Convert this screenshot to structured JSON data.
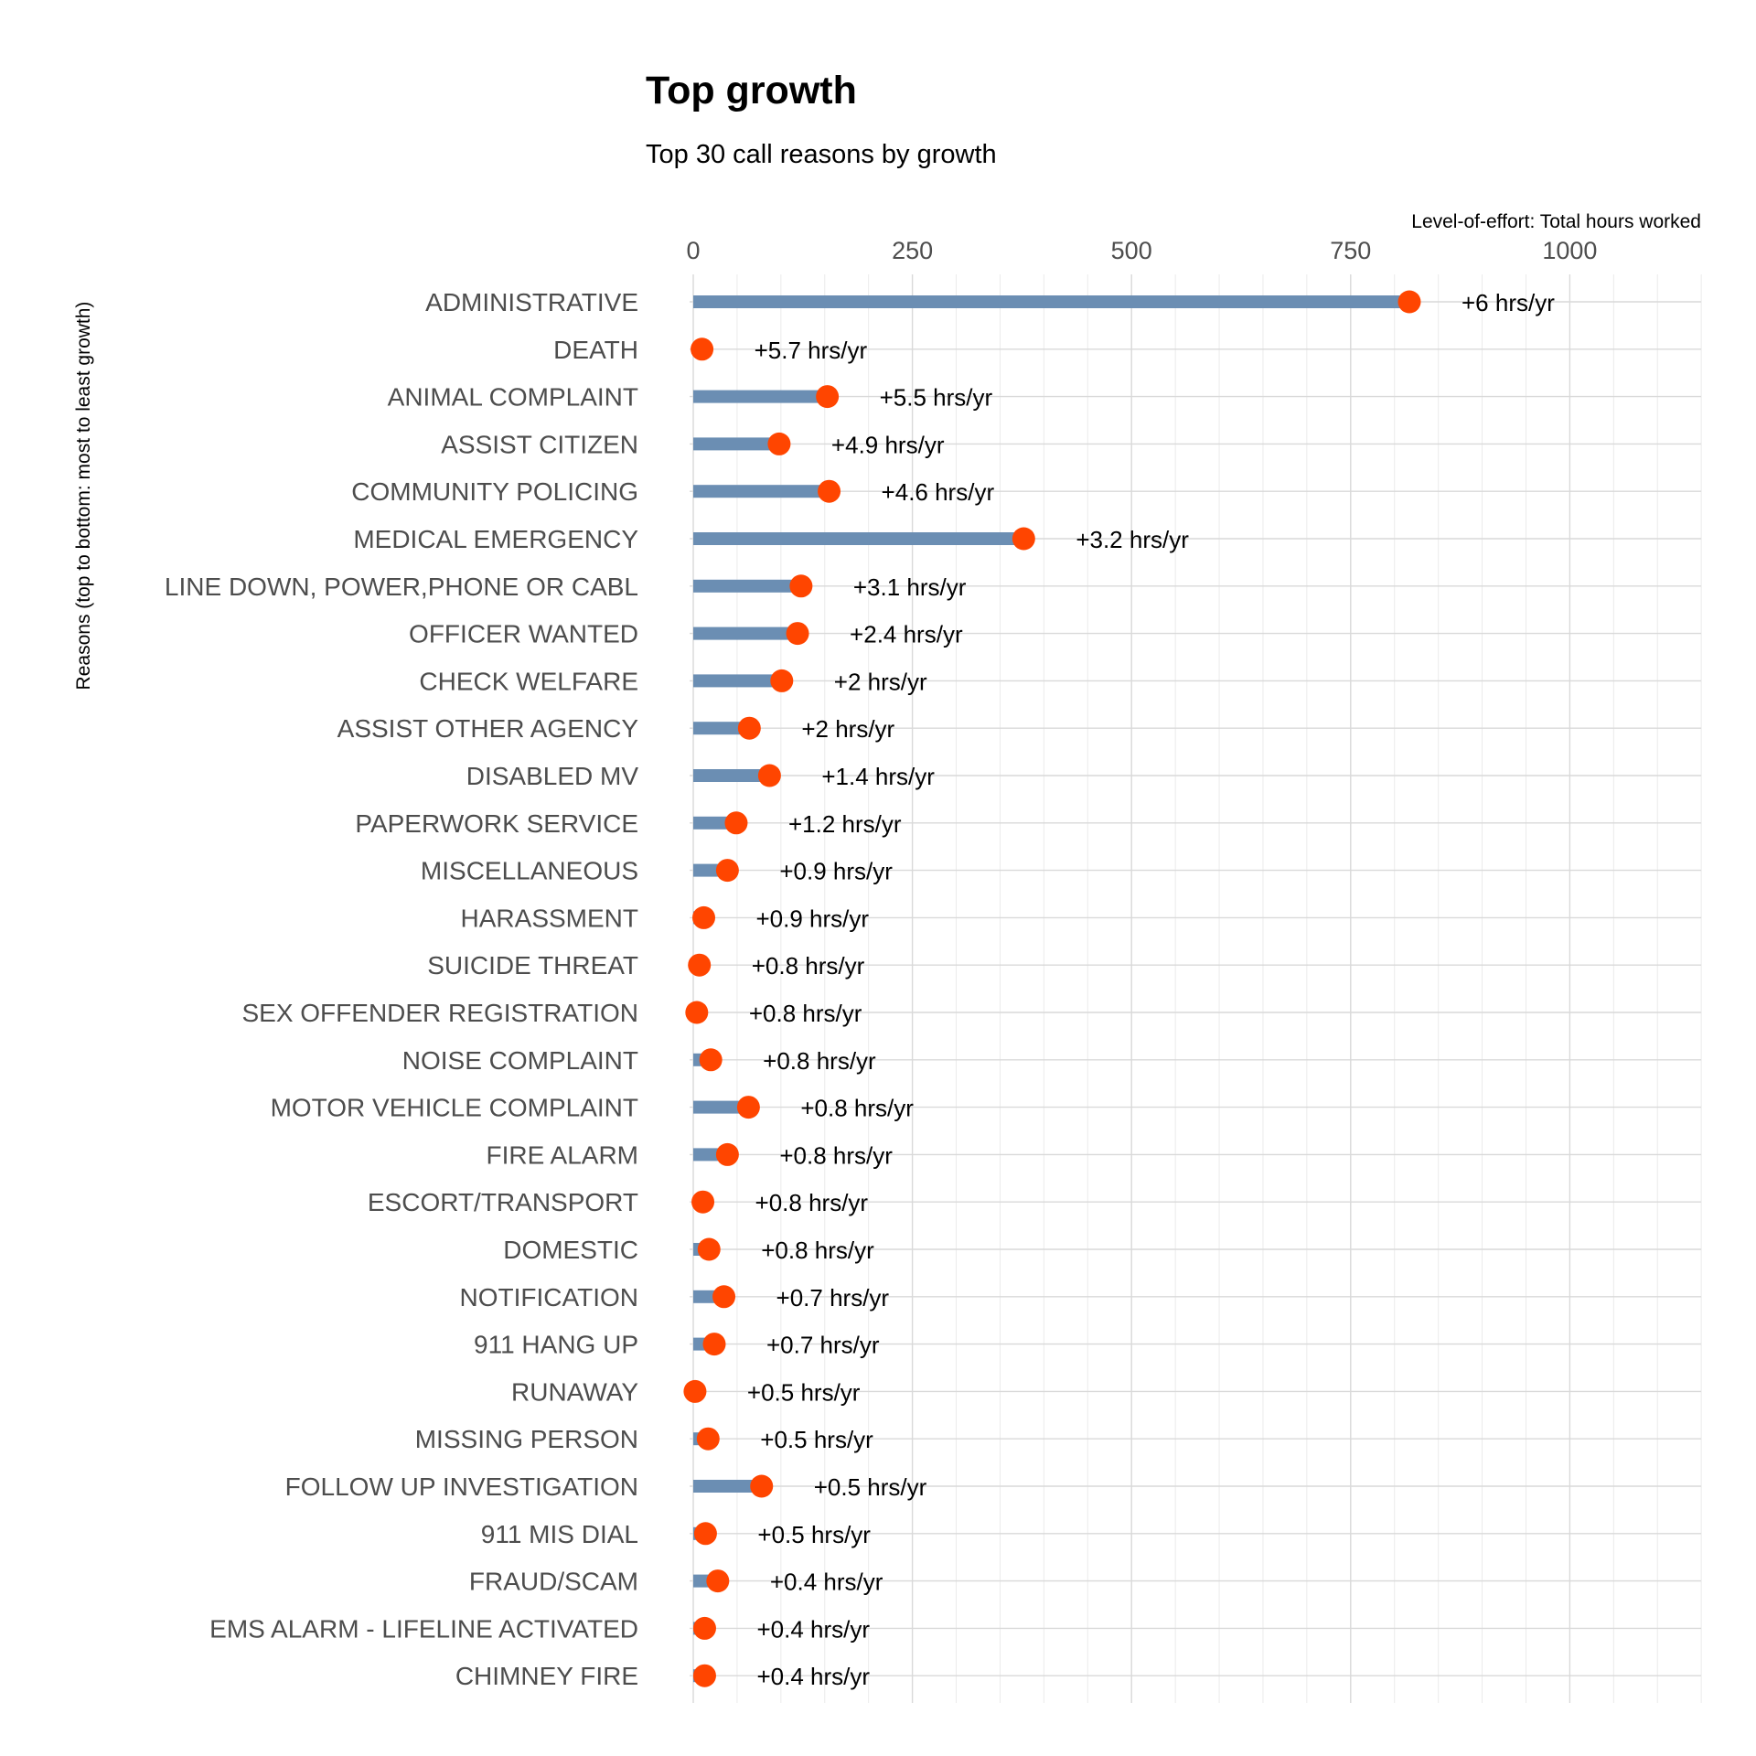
{
  "chart_data": {
    "type": "bar",
    "title": "Top growth",
    "subtitle": "Top 30 call reasons by growth",
    "xlabel": "Level-of-effort: Total hours worked",
    "ylabel": "Reasons (top to bottom: most to least growth)",
    "xlim": [
      0,
      1150
    ],
    "xticks": [
      0,
      250,
      500,
      750,
      1000
    ],
    "grid": true,
    "colors": {
      "bar": "#6b8eb3",
      "point": "#ff4500"
    },
    "categories": [
      "ADMINISTRATIVE",
      "DEATH",
      "ANIMAL COMPLAINT",
      "ASSIST CITIZEN",
      "COMMUNITY POLICING",
      "MEDICAL EMERGENCY",
      "LINE DOWN, POWER,PHONE OR CABL",
      "OFFICER WANTED",
      "CHECK WELFARE",
      "ASSIST OTHER AGENCY",
      "DISABLED MV",
      "PAPERWORK SERVICE",
      "MISCELLANEOUS",
      "HARASSMENT",
      "SUICIDE THREAT",
      "SEX OFFENDER REGISTRATION",
      "NOISE COMPLAINT",
      "MOTOR VEHICLE COMPLAINT",
      "FIRE ALARM",
      "ESCORT/TRANSPORT",
      "DOMESTIC",
      "NOTIFICATION",
      "911 HANG UP",
      "RUNAWAY",
      "MISSING PERSON",
      "FOLLOW UP INVESTIGATION",
      "911 MIS DIAL",
      "FRAUD/SCAM",
      "EMS ALARM - LIFELINE ACTIVATED",
      "CHIMNEY FIRE"
    ],
    "series": [
      {
        "values": [
          817,
          10,
          153,
          98,
          155,
          377,
          123,
          119,
          101,
          64,
          87,
          49,
          39,
          12,
          7,
          4,
          20,
          63,
          39,
          11,
          18,
          35,
          24,
          2,
          17,
          78,
          14,
          28,
          13,
          13
        ]
      }
    ],
    "labels": [
      "+6 hrs/yr",
      "+5.7 hrs/yr",
      "+5.5 hrs/yr",
      "+4.9 hrs/yr",
      "+4.6 hrs/yr",
      "+3.2 hrs/yr",
      "+3.1 hrs/yr",
      "+2.4 hrs/yr",
      "+2 hrs/yr",
      "+2 hrs/yr",
      "+1.4 hrs/yr",
      "+1.2 hrs/yr",
      "+0.9 hrs/yr",
      "+0.9 hrs/yr",
      "+0.8 hrs/yr",
      "+0.8 hrs/yr",
      "+0.8 hrs/yr",
      "+0.8 hrs/yr",
      "+0.8 hrs/yr",
      "+0.8 hrs/yr",
      "+0.8 hrs/yr",
      "+0.7 hrs/yr",
      "+0.7 hrs/yr",
      "+0.5 hrs/yr",
      "+0.5 hrs/yr",
      "+0.5 hrs/yr",
      "+0.5 hrs/yr",
      "+0.4 hrs/yr",
      "+0.4 hrs/yr",
      "+0.4 hrs/yr"
    ]
  }
}
